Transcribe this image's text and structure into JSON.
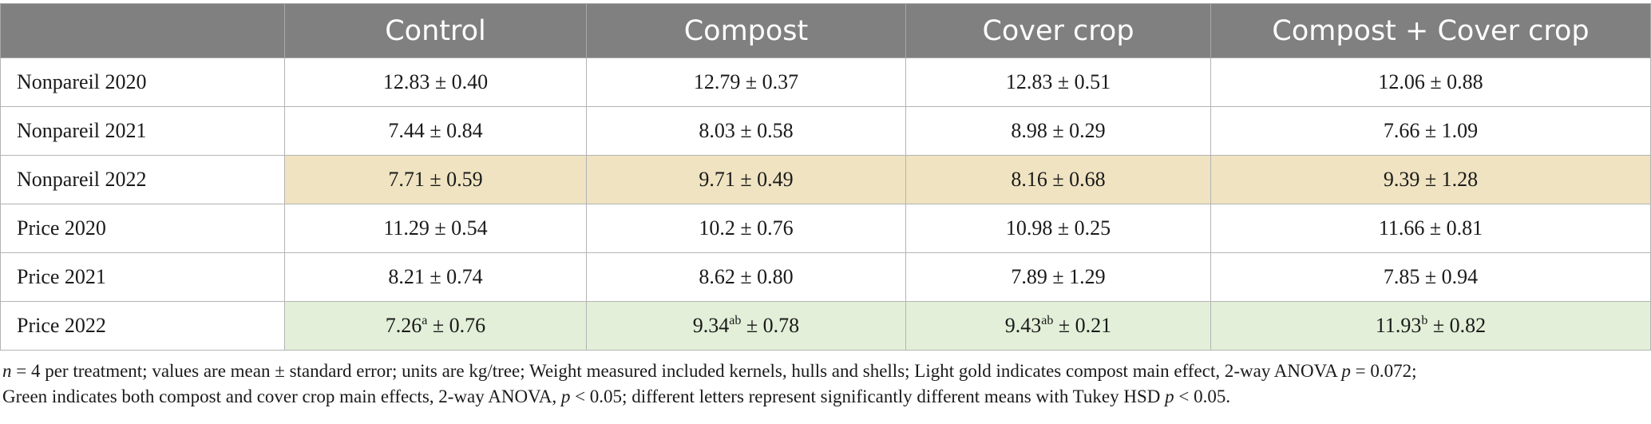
{
  "table": {
    "headers": [
      "",
      "Control",
      "Compost",
      "Cover crop",
      "Compost + Cover crop"
    ],
    "rows": [
      {
        "label": "Nonpareil 2020",
        "cells": [
          {
            "value": "12.83",
            "sup": "",
            "se": " ± 0.40"
          },
          {
            "value": "12.79",
            "sup": "",
            "se": " ± 0.37"
          },
          {
            "value": "12.83",
            "sup": "",
            "se": " ± 0.51"
          },
          {
            "value": "12.06",
            "sup": "",
            "se": " ± 0.88"
          }
        ]
      },
      {
        "label": "Nonpareil 2021",
        "cells": [
          {
            "value": "7.44",
            "sup": "",
            "se": " ± 0.84"
          },
          {
            "value": "8.03",
            "sup": "",
            "se": " ± 0.58"
          },
          {
            "value": "8.98",
            "sup": "",
            "se": " ± 0.29"
          },
          {
            "value": "7.66",
            "sup": "",
            "se": " ± 1.09"
          }
        ]
      },
      {
        "label": "Nonpareil 2022",
        "cells": [
          {
            "value": "7.71",
            "sup": "",
            "se": " ± 0.59"
          },
          {
            "value": "9.71",
            "sup": "",
            "se": " ± 0.49"
          },
          {
            "value": "8.16",
            "sup": "",
            "se": " ± 0.68"
          },
          {
            "value": "9.39",
            "sup": "",
            "se": " ± 1.28"
          }
        ]
      },
      {
        "label": "Price 2020",
        "cells": [
          {
            "value": "11.29",
            "sup": "",
            "se": " ± 0.54"
          },
          {
            "value": "10.2",
            "sup": "",
            "se": " ± 0.76"
          },
          {
            "value": "10.98",
            "sup": "",
            "se": " ± 0.25"
          },
          {
            "value": "11.66",
            "sup": "",
            "se": " ± 0.81"
          }
        ]
      },
      {
        "label": "Price 2021",
        "cells": [
          {
            "value": "8.21",
            "sup": "",
            "se": " ± 0.74"
          },
          {
            "value": "8.62",
            "sup": "",
            "se": " ± 0.80"
          },
          {
            "value": "7.89",
            "sup": "",
            "se": " ± 1.29"
          },
          {
            "value": "7.85",
            "sup": "",
            "se": " ± 0.94"
          }
        ]
      },
      {
        "label": "Price 2022",
        "cells": [
          {
            "value": "7.26",
            "sup": "a",
            "se": " ± 0.76"
          },
          {
            "value": "9.34",
            "sup": "ab",
            "se": " ± 0.78"
          },
          {
            "value": "9.43",
            "sup": "ab",
            "se": " ± 0.21"
          },
          {
            "value": "11.93",
            "sup": "b",
            "se": " ± 0.82"
          }
        ]
      }
    ]
  },
  "colors": {
    "header_bg": "#808080",
    "light_gold": "#efe3c1",
    "green": "#e3efd8"
  },
  "footnote": {
    "line1": {
      "n_symbol": "n",
      "t1": " = 4 per treatment; values are mean ± standard error; units are kg/tree; Weight measured included kernels, hulls and shells; Light gold indicates compost main effect, 2-way ANOVA ",
      "p_symbol": "p",
      "t2": " = 0.072;"
    },
    "line2": {
      "t1": "Green indicates both compost and cover crop main effects, 2-way ANOVA, ",
      "p_symbol": "p",
      "t2": " < 0.05; different letters represent significantly different means with Tukey HSD ",
      "p2_symbol": "p",
      "t3": " < 0.05."
    }
  }
}
